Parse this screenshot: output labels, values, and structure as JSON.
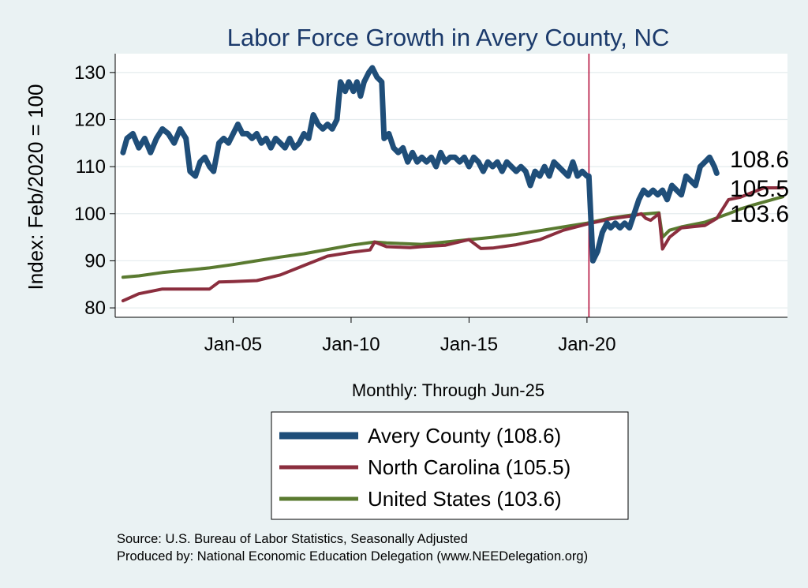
{
  "chart_data": {
    "type": "line",
    "title": "Labor Force Growth in Avery  County, NC",
    "ylabel": "Index: Feb/2020 = 100",
    "xlabel": "Monthly: Through Jun-25",
    "ylim": [
      78,
      134
    ],
    "yticks": [
      80,
      90,
      100,
      110,
      120,
      130
    ],
    "xticks": [
      {
        "label": "Jan-05",
        "value": 2005
      },
      {
        "label": "Jan-10",
        "value": 2010
      },
      {
        "label": "Jan-15",
        "value": 2015
      },
      {
        "label": "Jan-20",
        "value": 2020
      }
    ],
    "xlim": [
      2000,
      2028.5
    ],
    "reference_line": {
      "x": 2020.083,
      "color": "#b5123e"
    },
    "grid": true,
    "legend_position": "bottom",
    "series": [
      {
        "name": "Avery  County (108.6)",
        "color": "#1f4e79",
        "end_label": "108.6",
        "points": [
          [
            2000.33,
            113
          ],
          [
            2000.5,
            116
          ],
          [
            2000.75,
            117
          ],
          [
            2001,
            114
          ],
          [
            2001.25,
            116
          ],
          [
            2001.5,
            113
          ],
          [
            2001.75,
            116
          ],
          [
            2002,
            118
          ],
          [
            2002.25,
            117
          ],
          [
            2002.5,
            115
          ],
          [
            2002.75,
            118
          ],
          [
            2003,
            116
          ],
          [
            2003.17,
            109
          ],
          [
            2003.4,
            108
          ],
          [
            2003.6,
            111
          ],
          [
            2003.8,
            112
          ],
          [
            2004,
            110
          ],
          [
            2004.17,
            109
          ],
          [
            2004.4,
            115
          ],
          [
            2004.6,
            116
          ],
          [
            2004.8,
            115
          ],
          [
            2005,
            117
          ],
          [
            2005.2,
            119
          ],
          [
            2005.4,
            117
          ],
          [
            2005.6,
            117
          ],
          [
            2005.8,
            116
          ],
          [
            2006,
            117
          ],
          [
            2006.2,
            115
          ],
          [
            2006.4,
            116
          ],
          [
            2006.6,
            114
          ],
          [
            2006.8,
            116
          ],
          [
            2007,
            115
          ],
          [
            2007.2,
            114
          ],
          [
            2007.4,
            116
          ],
          [
            2007.6,
            114
          ],
          [
            2007.8,
            115
          ],
          [
            2008,
            117
          ],
          [
            2008.2,
            116
          ],
          [
            2008.4,
            121
          ],
          [
            2008.6,
            119
          ],
          [
            2008.8,
            118
          ],
          [
            2009,
            119
          ],
          [
            2009.2,
            118
          ],
          [
            2009.4,
            120
          ],
          [
            2009.55,
            128
          ],
          [
            2009.75,
            126
          ],
          [
            2009.9,
            128
          ],
          [
            2010.1,
            126
          ],
          [
            2010.25,
            128
          ],
          [
            2010.4,
            125
          ],
          [
            2010.55,
            128
          ],
          [
            2010.75,
            130
          ],
          [
            2010.9,
            131
          ],
          [
            2011.1,
            129
          ],
          [
            2011.3,
            128
          ],
          [
            2011.4,
            116
          ],
          [
            2011.6,
            117
          ],
          [
            2011.8,
            114
          ],
          [
            2012,
            113
          ],
          [
            2012.2,
            114
          ],
          [
            2012.4,
            111
          ],
          [
            2012.6,
            113
          ],
          [
            2012.8,
            111
          ],
          [
            2013,
            112
          ],
          [
            2013.2,
            111
          ],
          [
            2013.4,
            112
          ],
          [
            2013.6,
            110
          ],
          [
            2013.8,
            113
          ],
          [
            2014,
            111
          ],
          [
            2014.2,
            112
          ],
          [
            2014.4,
            112
          ],
          [
            2014.6,
            111
          ],
          [
            2014.8,
            112
          ],
          [
            2015,
            110
          ],
          [
            2015.2,
            112
          ],
          [
            2015.4,
            111
          ],
          [
            2015.6,
            109
          ],
          [
            2015.8,
            111
          ],
          [
            2016,
            110
          ],
          [
            2016.2,
            111
          ],
          [
            2016.4,
            109
          ],
          [
            2016.6,
            111
          ],
          [
            2016.8,
            110
          ],
          [
            2017,
            109
          ],
          [
            2017.2,
            110
          ],
          [
            2017.4,
            109
          ],
          [
            2017.6,
            106
          ],
          [
            2017.8,
            109
          ],
          [
            2018,
            108
          ],
          [
            2018.2,
            110
          ],
          [
            2018.4,
            108
          ],
          [
            2018.6,
            111
          ],
          [
            2018.8,
            110
          ],
          [
            2019,
            109
          ],
          [
            2019.2,
            108
          ],
          [
            2019.4,
            111
          ],
          [
            2019.6,
            108
          ],
          [
            2019.8,
            109
          ],
          [
            2020,
            108
          ],
          [
            2020.08,
            108
          ],
          [
            2020.25,
            90
          ],
          [
            2020.45,
            92
          ],
          [
            2020.65,
            96
          ],
          [
            2020.85,
            98
          ],
          [
            2021,
            97
          ],
          [
            2021.2,
            98
          ],
          [
            2021.4,
            97
          ],
          [
            2021.6,
            98
          ],
          [
            2021.8,
            97
          ],
          [
            2022,
            100
          ],
          [
            2022.2,
            103
          ],
          [
            2022.4,
            105
          ],
          [
            2022.6,
            104
          ],
          [
            2022.8,
            105
          ],
          [
            2023,
            104
          ],
          [
            2023.2,
            105
          ],
          [
            2023.4,
            103
          ],
          [
            2023.6,
            106
          ],
          [
            2023.8,
            105
          ],
          [
            2024,
            104
          ],
          [
            2024.2,
            108
          ],
          [
            2024.4,
            107
          ],
          [
            2024.6,
            106
          ],
          [
            2024.8,
            110
          ],
          [
            2025,
            111
          ],
          [
            2025.2,
            112
          ],
          [
            2025.4,
            110
          ],
          [
            2025.5,
            108.6
          ]
        ]
      },
      {
        "name": "North Carolina (105.5)",
        "color": "#8b2e3e",
        "end_label": "105.5",
        "points": [
          [
            2000.33,
            81.5
          ],
          [
            2001,
            83
          ],
          [
            2002,
            84
          ],
          [
            2003,
            84
          ],
          [
            2004,
            84
          ],
          [
            2004.4,
            85.5
          ],
          [
            2005,
            85.6
          ],
          [
            2006,
            85.8
          ],
          [
            2007,
            87
          ],
          [
            2008,
            89
          ],
          [
            2009,
            91
          ],
          [
            2010,
            91.8
          ],
          [
            2010.8,
            92.3
          ],
          [
            2011,
            94
          ],
          [
            2011.5,
            93
          ],
          [
            2012,
            92.9
          ],
          [
            2012.5,
            92.8
          ],
          [
            2013,
            93
          ],
          [
            2014,
            93.3
          ],
          [
            2015,
            94.5
          ],
          [
            2015.5,
            92.6
          ],
          [
            2016,
            92.7
          ],
          [
            2017,
            93.4
          ],
          [
            2018,
            94.5
          ],
          [
            2019,
            96.5
          ],
          [
            2020,
            97.8
          ],
          [
            2021,
            98.9
          ],
          [
            2022,
            99.6
          ],
          [
            2022.3,
            100
          ],
          [
            2022.5,
            99
          ],
          [
            2022.7,
            98.6
          ],
          [
            2023.05,
            100
          ],
          [
            2023.2,
            92.5
          ],
          [
            2023.5,
            95
          ],
          [
            2024,
            97
          ],
          [
            2025,
            97.5
          ],
          [
            2025.5,
            99
          ],
          [
            2026,
            103
          ],
          [
            2026.5,
            103.5
          ],
          [
            2027,
            104.5
          ],
          [
            2027.5,
            105.5
          ],
          [
            2028,
            105.5
          ],
          [
            2028.3,
            105.5
          ]
        ]
      },
      {
        "name": "United States (103.6)",
        "color": "#5a7a30",
        "end_label": "103.6",
        "points": [
          [
            2000.33,
            86.5
          ],
          [
            2001,
            86.8
          ],
          [
            2002,
            87.5
          ],
          [
            2003,
            88
          ],
          [
            2004,
            88.5
          ],
          [
            2005,
            89.2
          ],
          [
            2006,
            90
          ],
          [
            2007,
            90.8
          ],
          [
            2008,
            91.5
          ],
          [
            2009,
            92.4
          ],
          [
            2010,
            93.3
          ],
          [
            2011,
            94
          ],
          [
            2011.5,
            93.8
          ],
          [
            2012,
            93.7
          ],
          [
            2012.5,
            93.6
          ],
          [
            2013,
            93.5
          ],
          [
            2014,
            94
          ],
          [
            2015,
            94.5
          ],
          [
            2016,
            95
          ],
          [
            2017,
            95.6
          ],
          [
            2018,
            96.4
          ],
          [
            2019,
            97.2
          ],
          [
            2020,
            98
          ],
          [
            2021,
            99.1
          ],
          [
            2022,
            99.8
          ],
          [
            2022.6,
            100
          ],
          [
            2023.05,
            100.2
          ],
          [
            2023.2,
            95
          ],
          [
            2023.5,
            96.5
          ],
          [
            2024,
            97.2
          ],
          [
            2025,
            98.2
          ],
          [
            2026,
            100
          ],
          [
            2026.5,
            101
          ],
          [
            2027,
            101.8
          ],
          [
            2027.5,
            102.5
          ],
          [
            2028,
            103.2
          ],
          [
            2028.3,
            103.6
          ]
        ]
      }
    ],
    "legend": [
      {
        "label": "Avery  County (108.6)",
        "color": "#1f4e79"
      },
      {
        "label": "North Carolina (105.5)",
        "color": "#8b2e3e"
      },
      {
        "label": "United States (103.6)",
        "color": "#5a7a30"
      }
    ]
  },
  "footer": {
    "source": "Source: U.S. Bureau of Labor Statistics, Seasonally Adjusted",
    "produced": "Produced by: National Economic Education Delegation (www.NEEDelegation.org)"
  }
}
